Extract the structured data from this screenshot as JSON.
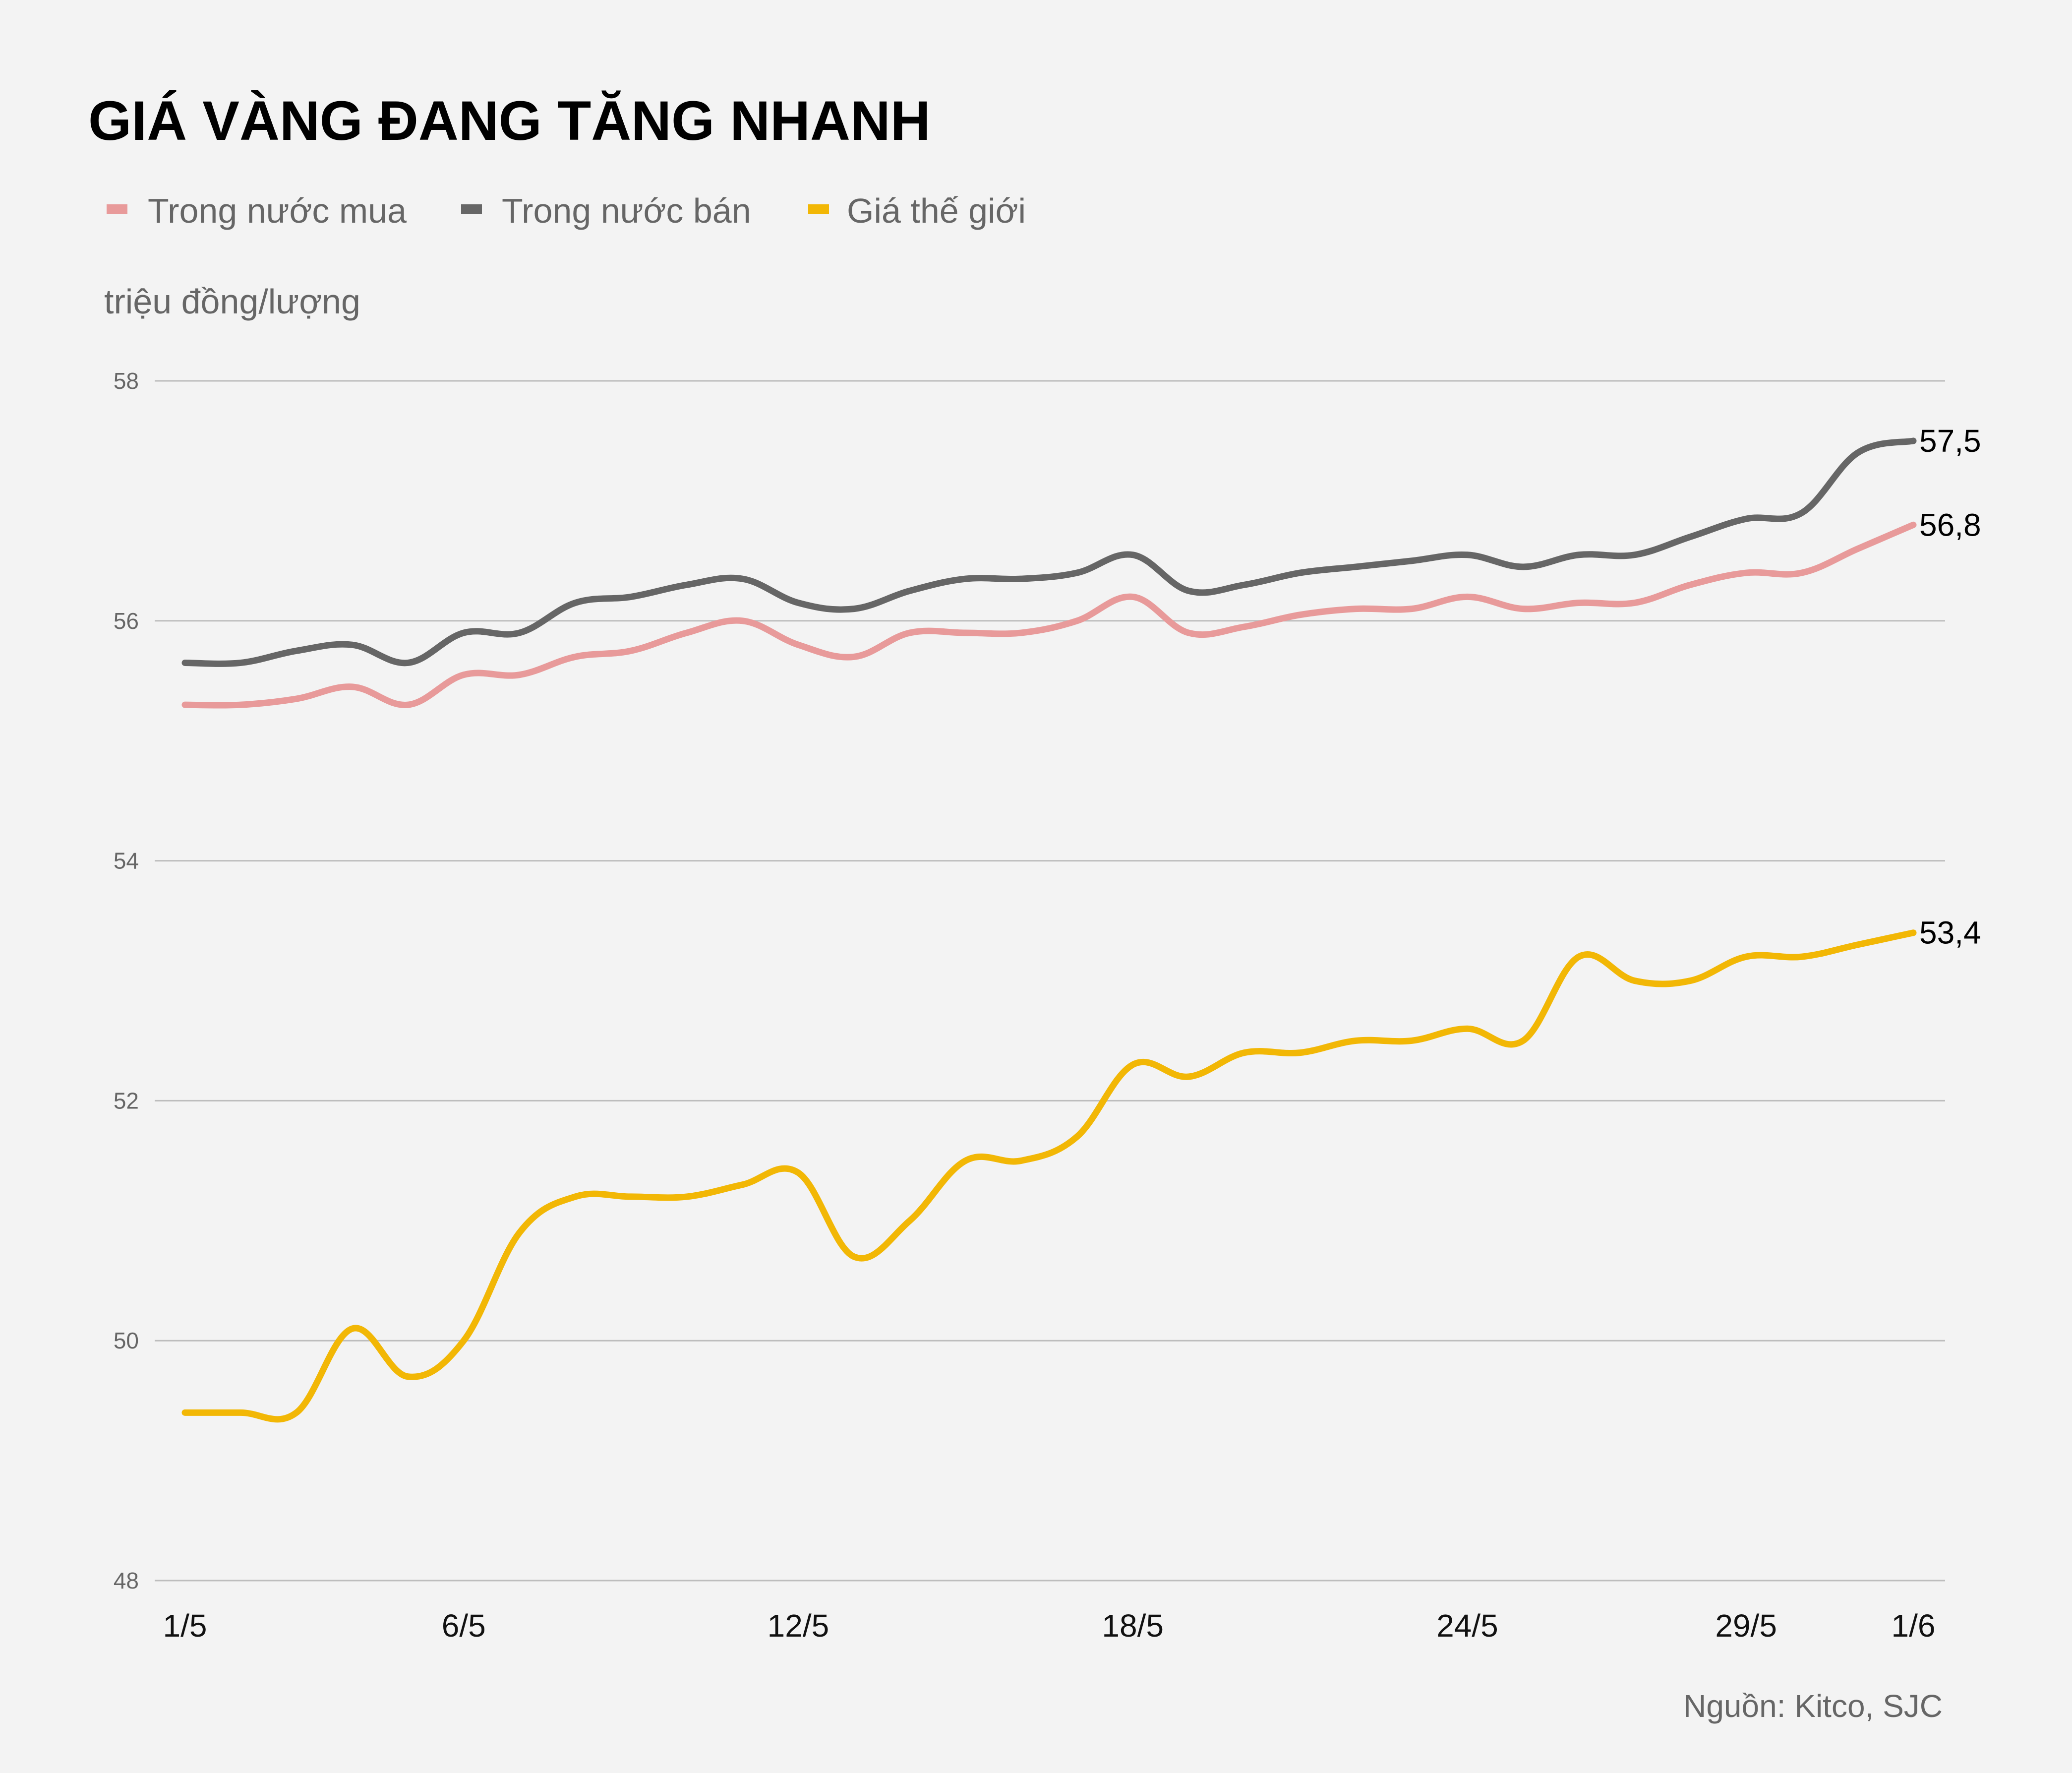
{
  "chart_data": {
    "type": "line",
    "title": "GIÁ VÀNG ĐANG TĂNG NHANH",
    "ylabel": "triệu đồng/lượng",
    "source": "Nguồn: Kitco, SJC",
    "ylim": [
      48,
      58
    ],
    "yticks": [
      48,
      50,
      52,
      54,
      56,
      58
    ],
    "grid": "horizontal",
    "legend_position": "top-left",
    "x": [
      "1/5",
      "2/5",
      "3/5",
      "4/5",
      "5/5",
      "6/5",
      "7/5",
      "8/5",
      "9/5",
      "10/5",
      "11/5",
      "12/5",
      "13/5",
      "14/5",
      "15/5",
      "16/5",
      "17/5",
      "18/5",
      "19/5",
      "20/5",
      "21/5",
      "22/5",
      "23/5",
      "24/5",
      "25/5",
      "26/5",
      "27/5",
      "28/5",
      "29/5",
      "30/5",
      "31/5",
      "1/6"
    ],
    "xtick_labels": [
      "1/5",
      "6/5",
      "12/5",
      "18/5",
      "24/5",
      "29/5",
      "1/6"
    ],
    "series": [
      {
        "name": "Trong nước mua",
        "color": "#e89a9a",
        "end_label": "56,8",
        "values": [
          55.3,
          55.3,
          55.35,
          55.45,
          55.3,
          55.55,
          55.55,
          55.7,
          55.75,
          55.9,
          56.0,
          55.8,
          55.7,
          55.9,
          55.9,
          55.9,
          56.0,
          56.2,
          55.9,
          55.95,
          56.05,
          56.1,
          56.1,
          56.2,
          56.1,
          56.15,
          56.15,
          56.3,
          56.4,
          56.4,
          56.6,
          56.8
        ]
      },
      {
        "name": "Trong nước bán",
        "color": "#666666",
        "end_label": "57,5",
        "values": [
          55.65,
          55.65,
          55.75,
          55.8,
          55.65,
          55.9,
          55.9,
          56.15,
          56.2,
          56.3,
          56.35,
          56.15,
          56.1,
          56.25,
          56.35,
          56.35,
          56.4,
          56.55,
          56.25,
          56.3,
          56.4,
          56.45,
          56.5,
          56.55,
          56.45,
          56.55,
          56.55,
          56.7,
          56.85,
          56.9,
          57.4,
          57.5
        ]
      },
      {
        "name": "Giá thế giới",
        "color": "#f2b705",
        "end_label": "53,4",
        "values": [
          49.4,
          49.4,
          49.4,
          50.1,
          49.7,
          50.0,
          50.9,
          51.2,
          51.2,
          51.2,
          51.3,
          51.4,
          50.7,
          51.0,
          51.5,
          51.5,
          51.7,
          52.3,
          52.2,
          52.4,
          52.4,
          52.5,
          52.5,
          52.6,
          52.5,
          53.2,
          53.0,
          53.0,
          53.2,
          53.2,
          53.3,
          53.4
        ]
      }
    ]
  }
}
